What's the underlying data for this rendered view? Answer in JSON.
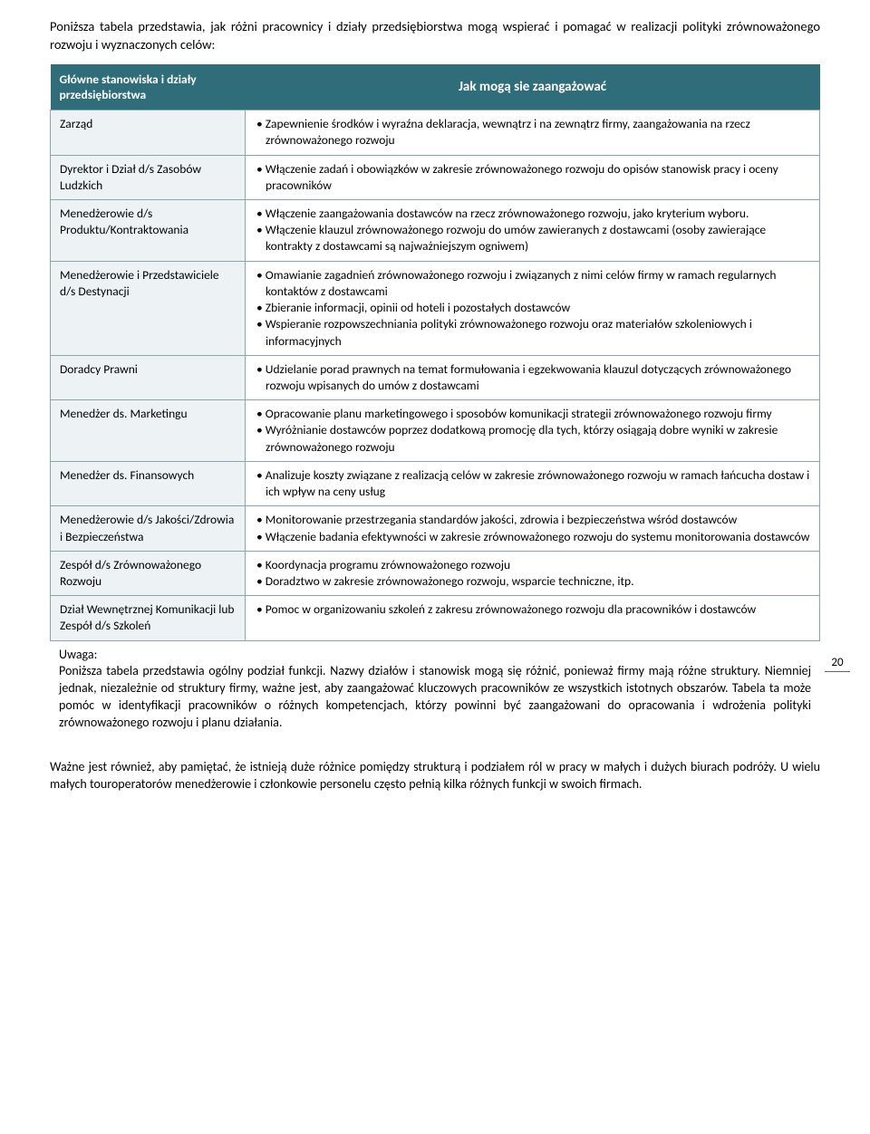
{
  "intro": "Poniższa tabela przedstawia, jak różni pracownicy i działy przedsiębiorstwa mogą wspierać i pomagać w realizacji polityki zrównoważonego rozwoju i wyznaczonych celów:",
  "table": {
    "header_left": "Główne stanowiska i działy przedsiębiorstwa",
    "header_right": "Jak mogą sie zaangażować",
    "rows": [
      {
        "role": "Zarząd",
        "items": [
          "Zapewnienie środków i wyraźna deklaracja, wewnątrz i na zewnątrz firmy, zaangażowania na rzecz zrównoważonego rozwoju"
        ]
      },
      {
        "role": "Dyrektor i Dział d/s Zasobów Ludzkich",
        "items": [
          "Włączenie zadań i obowiązków w zakresie zrównoważonego rozwoju do opisów stanowisk pracy i oceny pracowników"
        ]
      },
      {
        "role": "Menedżerowie d/s Produktu/Kontraktowania",
        "items": [
          "Włączenie zaangażowania dostawców na rzecz zrównoważonego rozwoju, jako kryterium wyboru.",
          "Włączenie klauzul zrównoważonego rozwoju do umów zawieranych z dostawcami (osoby zawierające kontrakty z dostawcami są najważniejszym ogniwem)"
        ]
      },
      {
        "role": "Menedżerowie i Przedstawiciele d/s Destynacji",
        "items": [
          "Omawianie zagadnień zrównoważonego rozwoju i związanych z nimi celów firmy w ramach regularnych kontaktów z dostawcami",
          "Zbieranie informacji, opinii od hoteli i pozostałych dostawców",
          "Wspieranie rozpowszechniania polityki zrównoważonego rozwoju oraz materiałów szkoleniowych i informacyjnych"
        ]
      },
      {
        "role": "Doradcy Prawni",
        "items": [
          "Udzielanie porad prawnych na temat formułowania i egzekwowania klauzul dotyczących zrównoważonego rozwoju wpisanych do umów z dostawcami"
        ]
      },
      {
        "role": "Menedżer ds. Marketingu",
        "items": [
          "Opracowanie planu marketingowego i sposobów komunikacji strategii zrównoważonego rozwoju firmy",
          "Wyróżnianie dostawców poprzez dodatkową promocję dla tych, którzy osiągają dobre wyniki w zakresie zrównoważonego rozwoju"
        ]
      },
      {
        "role": "Menedżer ds. Finansowych",
        "items": [
          "Analizuje koszty związane z realizacją celów w zakresie zrównoważonego rozwoju w ramach łańcucha dostaw i ich wpływ na ceny usług"
        ]
      },
      {
        "role": "Menedżerowie d/s Jakości/Zdrowia i Bezpieczeństwa",
        "items": [
          "Monitorowanie przestrzegania standardów jakości, zdrowia i bezpieczeństwa wśród dostawców",
          "Włączenie badania efektywności w zakresie zrównoważonego rozwoju do systemu monitorowania dostawców"
        ]
      },
      {
        "role": "Zespół d/s Zrównoważonego Rozwoju",
        "items": [
          "Koordynacja programu zrównoważonego rozwoju",
          "Doradztwo w zakresie  zrównoważonego rozwoju, wsparcie techniczne, itp."
        ]
      },
      {
        "role": "Dział Wewnętrznej Komunikacji lub Zespół d/s Szkoleń",
        "items": [
          "Pomoc w organizowaniu szkoleń z zakresu zrównoważonego rozwoju dla pracowników i dostawców"
        ]
      }
    ],
    "note_label": "Uwaga:",
    "note_text": "Poniższa tabela przedstawia ogólny podział funkcji. Nazwy działów i stanowisk mogą się różnić, ponieważ firmy mają różne struktury. Niemniej jednak, niezależnie od struktury firmy, ważne jest, aby zaangażować kluczowych pracowników ze wszystkich istotnych obszarów. Tabela ta może pomóc w identyfikacji pracowników o różnych kompetencjach, którzy powinni być zaangażowani do opracowania i wdrożenia polityki zrównoważonego rozwoju i planu działania."
  },
  "footer": "Ważne jest również, aby pamiętać, że istnieją duże różnice pomiędzy strukturą i podziałem ról w pracy w małych i dużych biurach podróży. U wielu małych touroperatorów menedżerowie i członkowie personelu często pełnią kilka różnych funkcji w swoich firmach.",
  "page_number": "20",
  "colors": {
    "header_bg": "#2f6d7a",
    "header_fg": "#ffffff",
    "role_bg": "#edf3f5",
    "border": "#8aa7ad",
    "text": "#000000",
    "page_bg": "#ffffff"
  }
}
